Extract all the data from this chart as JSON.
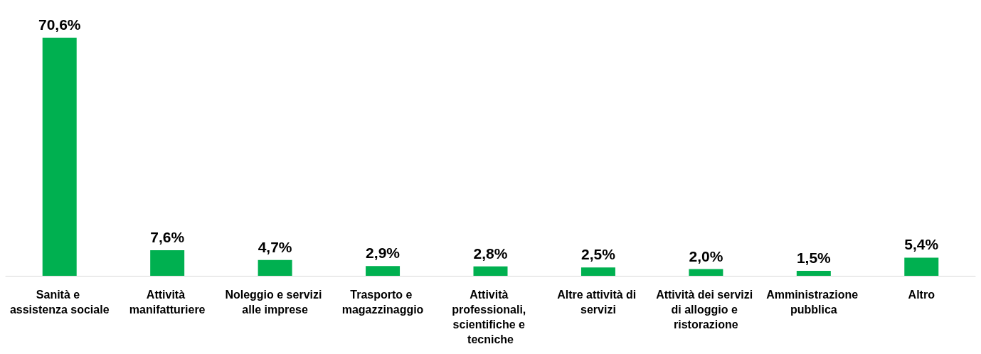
{
  "chart_data": {
    "type": "bar",
    "categories": [
      "Sanità e assistenza sociale",
      "Attività manifatturiere",
      "Noleggio e servizi alle imprese",
      "Trasporto e magazzinaggio",
      "Attività professionali, scientifiche e tecniche",
      "Altre attività di servizi",
      "Attività dei servizi di alloggio e ristorazione",
      "Amministrazione pubblica",
      "Altro"
    ],
    "values": [
      70.6,
      7.6,
      4.7,
      2.9,
      2.8,
      2.5,
      2.0,
      1.5,
      5.4
    ],
    "value_labels": [
      "70,6%",
      "7,6%",
      "4,7%",
      "2,9%",
      "2,8%",
      "2,5%",
      "2,0%",
      "1,5%",
      "5,4%"
    ],
    "color": "#00b050"
  }
}
